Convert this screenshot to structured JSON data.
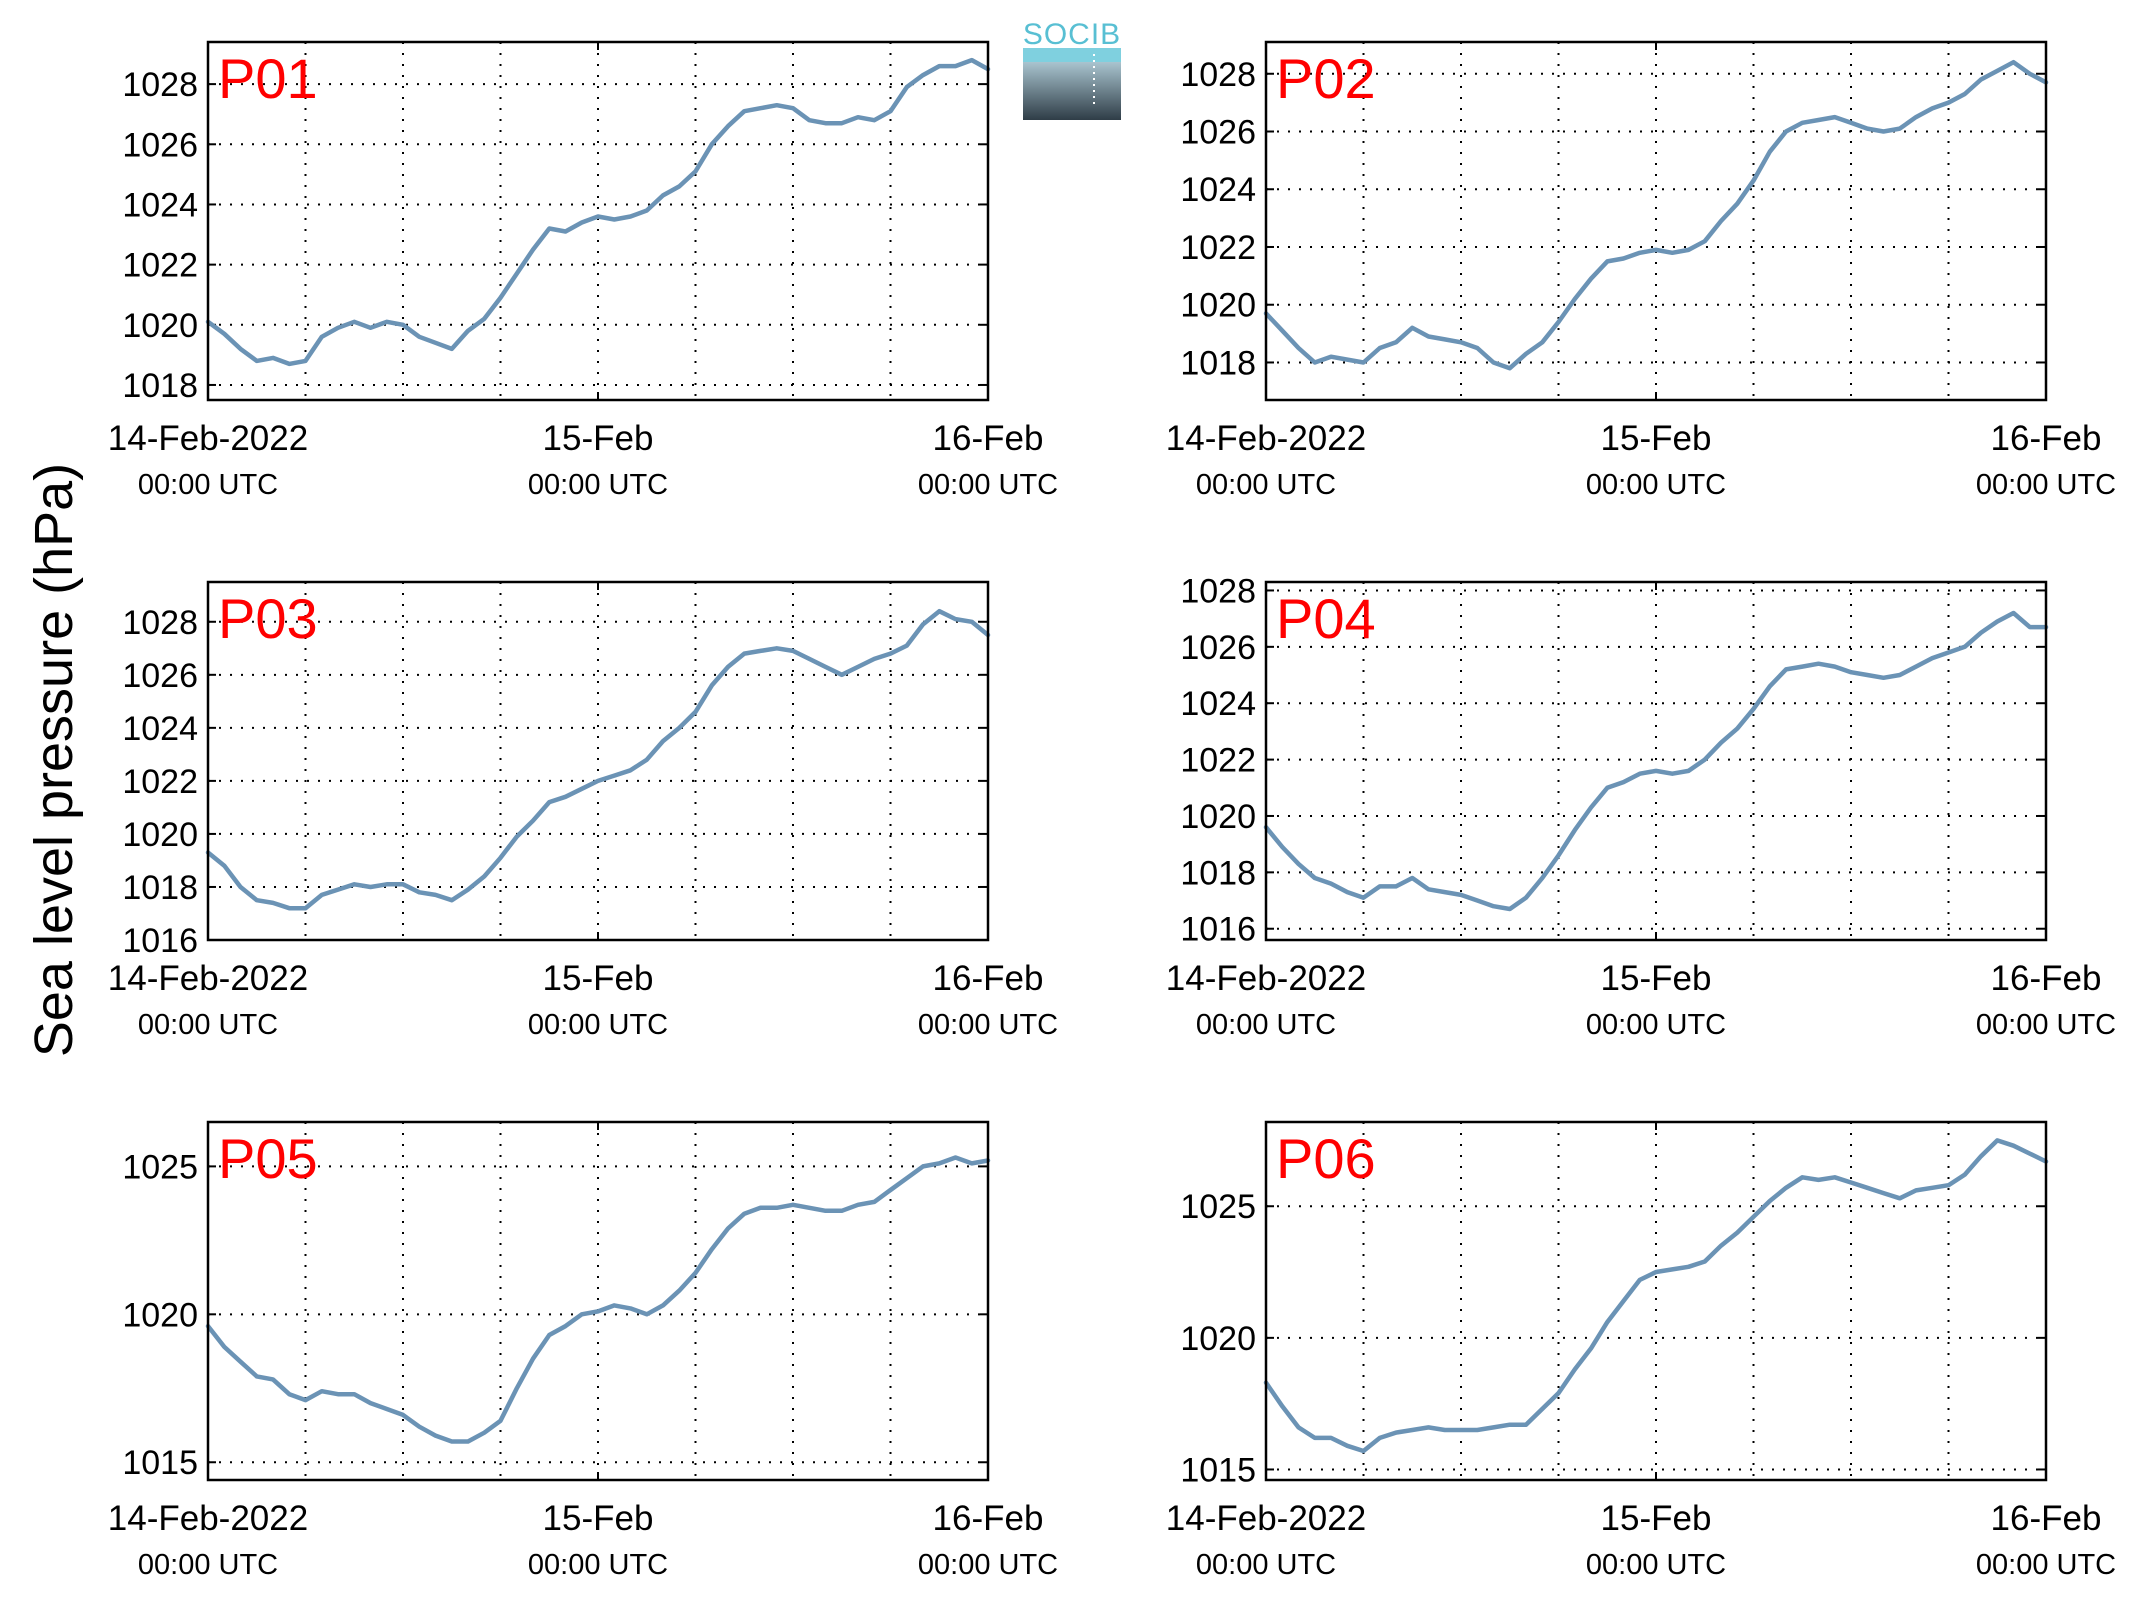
{
  "figure": {
    "ylabel": "Sea level pressure (hPa)",
    "logo_text": "SOCIB",
    "line_color": "#6b93b5",
    "label_color": "#ff0000"
  },
  "chart_data": [
    {
      "type": "line",
      "panel": "P01",
      "ylim": [
        1017.5,
        1029.4
      ],
      "yticks": [
        1018,
        1020,
        1022,
        1024,
        1026,
        1028
      ],
      "xticks": [
        {
          "main": "14-Feb-2022",
          "sub": "00:00 UTC"
        },
        {
          "main": "15-Feb",
          "sub": "00:00 UTC"
        },
        {
          "main": "16-Feb",
          "sub": "00:00 UTC"
        }
      ],
      "grid": true,
      "x_hours": [
        0,
        1,
        2,
        3,
        4,
        5,
        6,
        7,
        8,
        9,
        10,
        11,
        12,
        13,
        14,
        15,
        16,
        17,
        18,
        19,
        20,
        21,
        22,
        23,
        24,
        25,
        26,
        27,
        28,
        29,
        30,
        31,
        32,
        33,
        34,
        35,
        36,
        37,
        38,
        39,
        40,
        41,
        42,
        43,
        44,
        45,
        46,
        47,
        48
      ],
      "values": [
        1020.1,
        1019.7,
        1019.2,
        1018.8,
        1018.9,
        1018.7,
        1018.8,
        1019.6,
        1019.9,
        1020.1,
        1019.9,
        1020.1,
        1020.0,
        1019.6,
        1019.4,
        1019.2,
        1019.8,
        1020.2,
        1020.9,
        1021.7,
        1022.5,
        1023.2,
        1023.1,
        1023.4,
        1023.6,
        1023.5,
        1023.6,
        1023.8,
        1024.3,
        1024.6,
        1025.1,
        1026.0,
        1026.6,
        1027.1,
        1027.2,
        1027.3,
        1027.2,
        1026.8,
        1026.7,
        1026.7,
        1026.9,
        1026.8,
        1027.1,
        1027.9,
        1028.3,
        1028.6,
        1028.6,
        1028.8,
        1028.5
      ]
    },
    {
      "type": "line",
      "panel": "P02",
      "ylim": [
        1016.7,
        1029.1
      ],
      "yticks": [
        1018,
        1020,
        1022,
        1024,
        1026,
        1028
      ],
      "xticks": [
        {
          "main": "14-Feb-2022",
          "sub": "00:00 UTC"
        },
        {
          "main": "15-Feb",
          "sub": "00:00 UTC"
        },
        {
          "main": "16-Feb",
          "sub": "00:00 UTC"
        }
      ],
      "grid": true,
      "x_hours": [
        0,
        1,
        2,
        3,
        4,
        5,
        6,
        7,
        8,
        9,
        10,
        11,
        12,
        13,
        14,
        15,
        16,
        17,
        18,
        19,
        20,
        21,
        22,
        23,
        24,
        25,
        26,
        27,
        28,
        29,
        30,
        31,
        32,
        33,
        34,
        35,
        36,
        37,
        38,
        39,
        40,
        41,
        42,
        43,
        44,
        45,
        46,
        47,
        48
      ],
      "values": [
        1019.7,
        1019.1,
        1018.5,
        1018.0,
        1018.2,
        1018.1,
        1018.0,
        1018.5,
        1018.7,
        1019.2,
        1018.9,
        1018.8,
        1018.7,
        1018.5,
        1018.0,
        1017.8,
        1018.3,
        1018.7,
        1019.4,
        1020.2,
        1020.9,
        1021.5,
        1021.6,
        1021.8,
        1021.9,
        1021.8,
        1021.9,
        1022.2,
        1022.9,
        1023.5,
        1024.3,
        1025.3,
        1026.0,
        1026.3,
        1026.4,
        1026.5,
        1026.3,
        1026.1,
        1026.0,
        1026.1,
        1026.5,
        1026.8,
        1027.0,
        1027.3,
        1027.8,
        1028.1,
        1028.4,
        1028.0,
        1027.7
      ]
    },
    {
      "type": "line",
      "panel": "P03",
      "ylim": [
        1016.0,
        1029.5
      ],
      "yticks": [
        1016,
        1018,
        1020,
        1022,
        1024,
        1026,
        1028
      ],
      "xticks": [
        {
          "main": "14-Feb-2022",
          "sub": "00:00 UTC"
        },
        {
          "main": "15-Feb",
          "sub": "00:00 UTC"
        },
        {
          "main": "16-Feb",
          "sub": "00:00 UTC"
        }
      ],
      "grid": true,
      "x_hours": [
        0,
        1,
        2,
        3,
        4,
        5,
        6,
        7,
        8,
        9,
        10,
        11,
        12,
        13,
        14,
        15,
        16,
        17,
        18,
        19,
        20,
        21,
        22,
        23,
        24,
        25,
        26,
        27,
        28,
        29,
        30,
        31,
        32,
        33,
        34,
        35,
        36,
        37,
        38,
        39,
        40,
        41,
        42,
        43,
        44,
        45,
        46,
        47,
        48
      ],
      "values": [
        1019.3,
        1018.8,
        1018.0,
        1017.5,
        1017.4,
        1017.2,
        1017.2,
        1017.7,
        1017.9,
        1018.1,
        1018.0,
        1018.1,
        1018.1,
        1017.8,
        1017.7,
        1017.5,
        1017.9,
        1018.4,
        1019.1,
        1019.9,
        1020.5,
        1021.2,
        1021.4,
        1021.7,
        1022.0,
        1022.2,
        1022.4,
        1022.8,
        1023.5,
        1024.0,
        1024.6,
        1025.6,
        1026.3,
        1026.8,
        1026.9,
        1027.0,
        1026.9,
        1026.6,
        1026.3,
        1026.0,
        1026.3,
        1026.6,
        1026.8,
        1027.1,
        1027.9,
        1028.4,
        1028.1,
        1028.0,
        1027.5
      ]
    },
    {
      "type": "line",
      "panel": "P04",
      "ylim": [
        1015.6,
        1028.3
      ],
      "yticks": [
        1016,
        1018,
        1020,
        1022,
        1024,
        1026,
        1028
      ],
      "xticks": [
        {
          "main": "14-Feb-2022",
          "sub": "00:00 UTC"
        },
        {
          "main": "15-Feb",
          "sub": "00:00 UTC"
        },
        {
          "main": "16-Feb",
          "sub": "00:00 UTC"
        }
      ],
      "grid": true,
      "x_hours": [
        0,
        1,
        2,
        3,
        4,
        5,
        6,
        7,
        8,
        9,
        10,
        11,
        12,
        13,
        14,
        15,
        16,
        17,
        18,
        19,
        20,
        21,
        22,
        23,
        24,
        25,
        26,
        27,
        28,
        29,
        30,
        31,
        32,
        33,
        34,
        35,
        36,
        37,
        38,
        39,
        40,
        41,
        42,
        43,
        44,
        45,
        46,
        47,
        48
      ],
      "values": [
        1019.6,
        1018.9,
        1018.3,
        1017.8,
        1017.6,
        1017.3,
        1017.1,
        1017.5,
        1017.5,
        1017.8,
        1017.4,
        1017.3,
        1017.2,
        1017.0,
        1016.8,
        1016.7,
        1017.1,
        1017.8,
        1018.6,
        1019.5,
        1020.3,
        1021.0,
        1021.2,
        1021.5,
        1021.6,
        1021.5,
        1021.6,
        1022.0,
        1022.6,
        1023.1,
        1023.8,
        1024.6,
        1025.2,
        1025.3,
        1025.4,
        1025.3,
        1025.1,
        1025.0,
        1024.9,
        1025.0,
        1025.3,
        1025.6,
        1025.8,
        1026.0,
        1026.5,
        1026.9,
        1027.2,
        1026.7,
        1026.7
      ]
    },
    {
      "type": "line",
      "panel": "P05",
      "ylim": [
        1014.4,
        1026.5
      ],
      "yticks": [
        1015,
        1020,
        1025
      ],
      "xticks": [
        {
          "main": "14-Feb-2022",
          "sub": "00:00 UTC"
        },
        {
          "main": "15-Feb",
          "sub": "00:00 UTC"
        },
        {
          "main": "16-Feb",
          "sub": "00:00 UTC"
        }
      ],
      "grid": true,
      "x_hours": [
        0,
        1,
        2,
        3,
        4,
        5,
        6,
        7,
        8,
        9,
        10,
        11,
        12,
        13,
        14,
        15,
        16,
        17,
        18,
        19,
        20,
        21,
        22,
        23,
        24,
        25,
        26,
        27,
        28,
        29,
        30,
        31,
        32,
        33,
        34,
        35,
        36,
        37,
        38,
        39,
        40,
        41,
        42,
        43,
        44,
        45,
        46,
        47,
        48
      ],
      "values": [
        1019.6,
        1018.9,
        1018.4,
        1017.9,
        1017.8,
        1017.3,
        1017.1,
        1017.4,
        1017.3,
        1017.3,
        1017.0,
        1016.8,
        1016.6,
        1016.2,
        1015.9,
        1015.7,
        1015.7,
        1016.0,
        1016.4,
        1017.5,
        1018.5,
        1019.3,
        1019.6,
        1020.0,
        1020.1,
        1020.3,
        1020.2,
        1020.0,
        1020.3,
        1020.8,
        1021.4,
        1022.2,
        1022.9,
        1023.4,
        1023.6,
        1023.6,
        1023.7,
        1023.6,
        1023.5,
        1023.5,
        1023.7,
        1023.8,
        1024.2,
        1024.6,
        1025.0,
        1025.1,
        1025.3,
        1025.1,
        1025.2
      ]
    },
    {
      "type": "line",
      "panel": "P06",
      "ylim": [
        1014.6,
        1028.2
      ],
      "yticks": [
        1015,
        1020,
        1025
      ],
      "xticks": [
        {
          "main": "14-Feb-2022",
          "sub": "00:00 UTC"
        },
        {
          "main": "15-Feb",
          "sub": "00:00 UTC"
        },
        {
          "main": "16-Feb",
          "sub": "00:00 UTC"
        }
      ],
      "grid": true,
      "x_hours": [
        0,
        1,
        2,
        3,
        4,
        5,
        6,
        7,
        8,
        9,
        10,
        11,
        12,
        13,
        14,
        15,
        16,
        17,
        18,
        19,
        20,
        21,
        22,
        23,
        24,
        25,
        26,
        27,
        28,
        29,
        30,
        31,
        32,
        33,
        34,
        35,
        36,
        37,
        38,
        39,
        40,
        41,
        42,
        43,
        44,
        45,
        46,
        47,
        48
      ],
      "values": [
        1018.3,
        1017.4,
        1016.6,
        1016.2,
        1016.2,
        1015.9,
        1015.7,
        1016.2,
        1016.4,
        1016.5,
        1016.6,
        1016.5,
        1016.5,
        1016.5,
        1016.6,
        1016.7,
        1016.7,
        1017.3,
        1017.9,
        1018.8,
        1019.6,
        1020.6,
        1021.4,
        1022.2,
        1022.5,
        1022.6,
        1022.7,
        1022.9,
        1023.5,
        1024.0,
        1024.6,
        1025.2,
        1025.7,
        1026.1,
        1026.0,
        1026.1,
        1025.9,
        1025.7,
        1025.5,
        1025.3,
        1025.6,
        1025.7,
        1025.8,
        1026.2,
        1026.9,
        1027.5,
        1027.3,
        1027.0,
        1026.7
      ]
    }
  ]
}
